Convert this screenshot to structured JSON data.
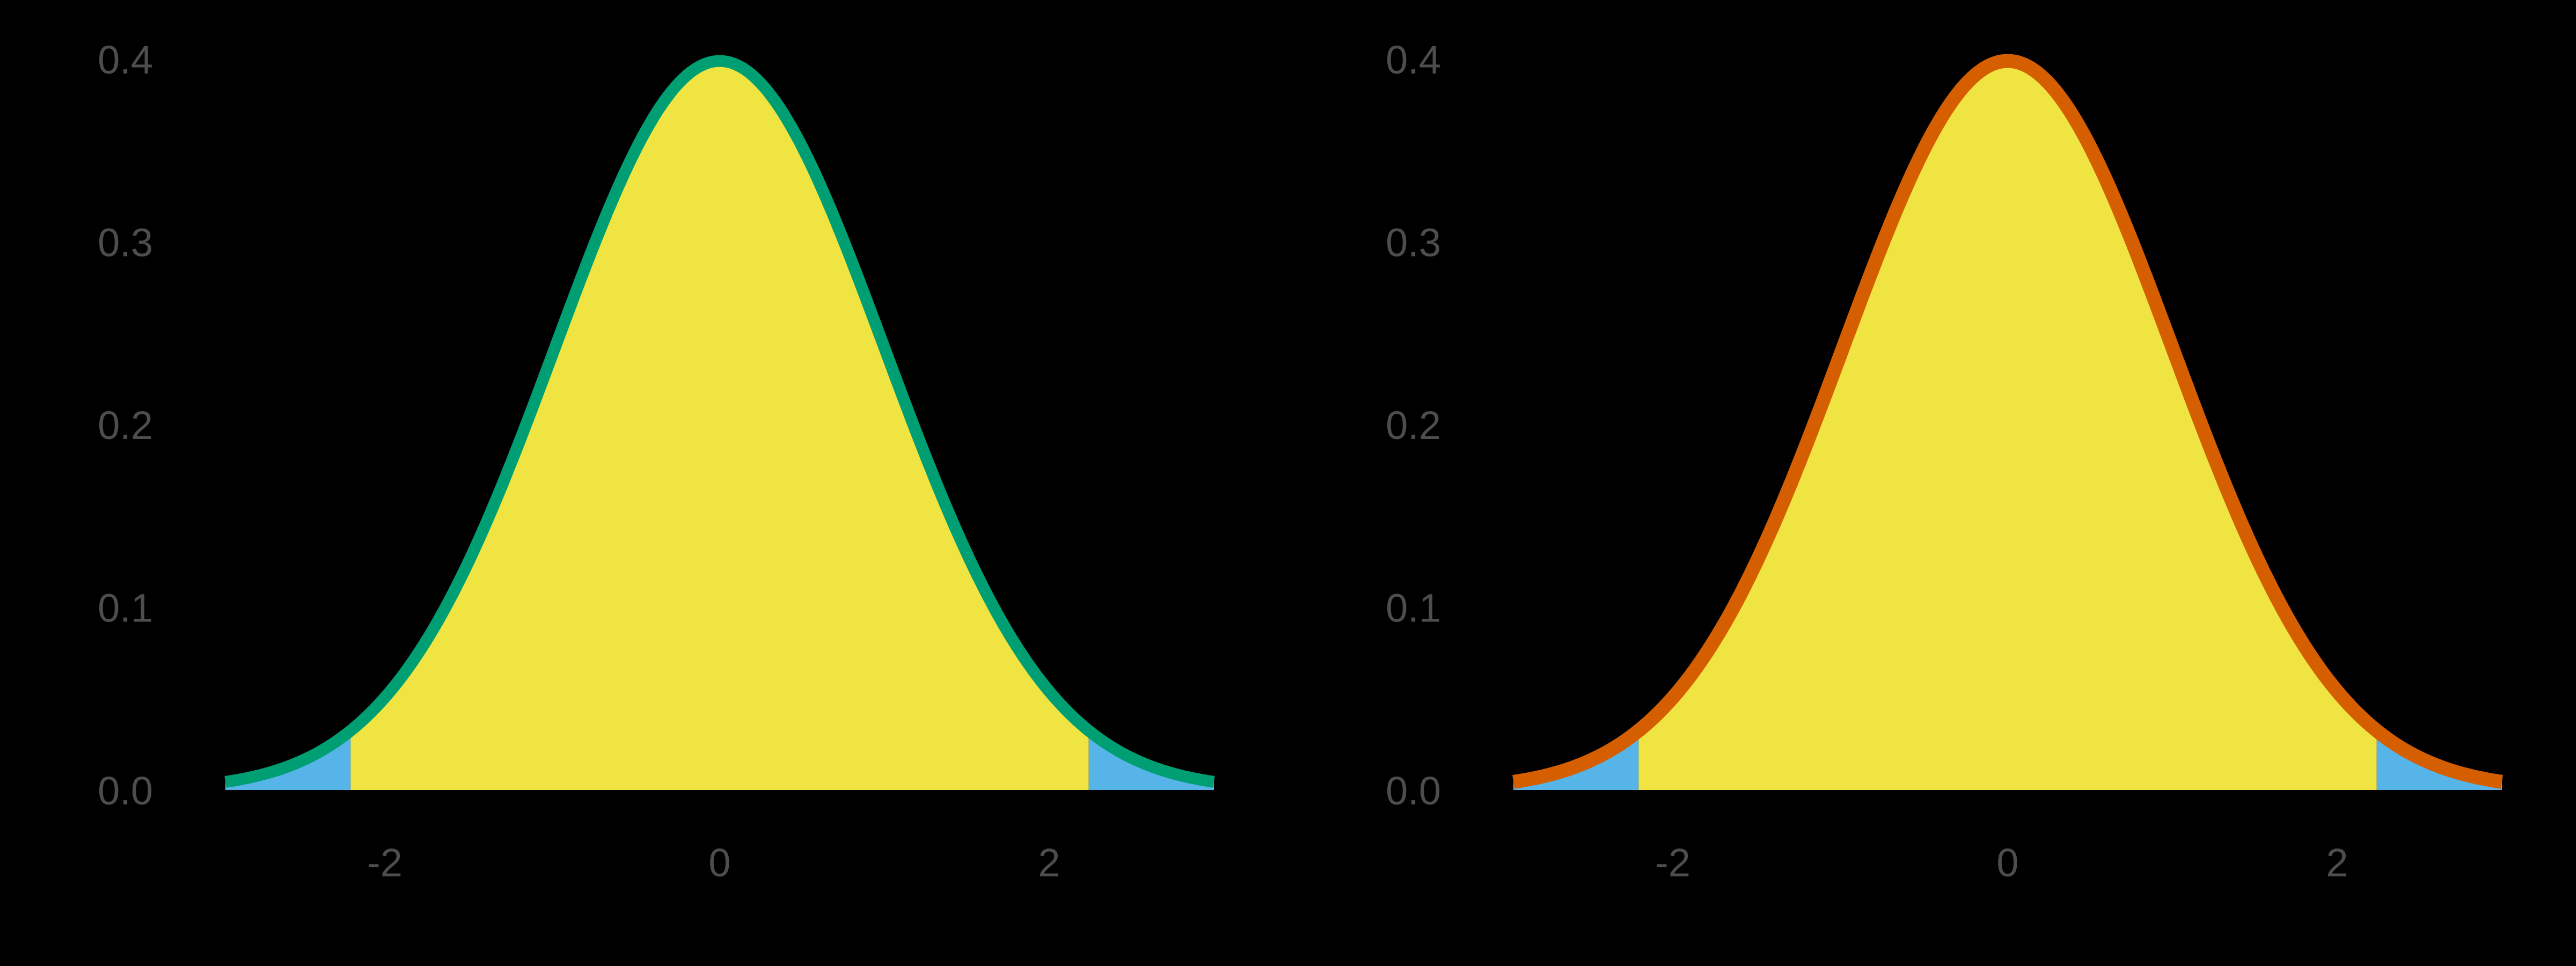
{
  "figure": {
    "background": "#000000",
    "text_color": "#4d4d4d",
    "fill_center_color": "#F0E442",
    "fill_tail_color": "#56B4E9"
  },
  "chart_data": [
    {
      "type": "area",
      "title": "",
      "xlabel": "",
      "ylabel": "",
      "description": "Standard normal density N(0,1) with shaded two-sided rejection tails",
      "curve": {
        "distribution": "normal",
        "mean": 0,
        "sd": 1
      },
      "xlim": [
        -3,
        3
      ],
      "ylim": [
        0,
        0.4
      ],
      "x_ticks": [
        -2,
        0,
        2
      ],
      "x_tick_labels": [
        "-2",
        "0",
        "2"
      ],
      "y_ticks": [
        0.0,
        0.1,
        0.2,
        0.3,
        0.4
      ],
      "y_tick_labels": [
        "0.0",
        "0.1",
        "0.2",
        "0.3",
        "0.4"
      ],
      "critical_values": [
        -2.24,
        2.24
      ],
      "regions": [
        {
          "name": "left tail",
          "from": -3,
          "to": -2.24,
          "color": "#56B4E9"
        },
        {
          "name": "center",
          "from": -2.24,
          "to": 2.24,
          "color": "#F0E442"
        },
        {
          "name": "right tail",
          "from": 2.24,
          "to": 3,
          "color": "#56B4E9"
        }
      ],
      "line_color": "#009E73",
      "line_width": 22,
      "grid": false,
      "legend": null,
      "points": {
        "x": [
          -3,
          -2.5,
          -2,
          -1.5,
          -1,
          -0.5,
          0,
          0.5,
          1,
          1.5,
          2,
          2.5,
          3
        ],
        "y": [
          0.0044,
          0.0175,
          0.054,
          0.1295,
          0.242,
          0.3521,
          0.3989,
          0.3521,
          0.242,
          0.1295,
          0.054,
          0.0175,
          0.0044
        ]
      }
    },
    {
      "type": "area",
      "title": "",
      "xlabel": "",
      "ylabel": "",
      "description": "Standard normal density N(0,1) with shaded two-sided rejection tails",
      "curve": {
        "distribution": "normal",
        "mean": 0,
        "sd": 1
      },
      "xlim": [
        -3,
        3
      ],
      "ylim": [
        0,
        0.4
      ],
      "x_ticks": [
        -2,
        0,
        2
      ],
      "x_tick_labels": [
        "-2",
        "0",
        "2"
      ],
      "y_ticks": [
        0.0,
        0.1,
        0.2,
        0.3,
        0.4
      ],
      "y_tick_labels": [
        "0.0",
        "0.1",
        "0.2",
        "0.3",
        "0.4"
      ],
      "critical_values": [
        -2.24,
        2.24
      ],
      "regions": [
        {
          "name": "left tail",
          "from": -3,
          "to": -2.24,
          "color": "#56B4E9"
        },
        {
          "name": "center",
          "from": -2.24,
          "to": 2.24,
          "color": "#F0E442"
        },
        {
          "name": "right tail",
          "from": 2.24,
          "to": 3,
          "color": "#56B4E9"
        }
      ],
      "line_color": "#D55E00",
      "line_width": 26,
      "grid": false,
      "legend": null,
      "points": {
        "x": [
          -3,
          -2.5,
          -2,
          -1.5,
          -1,
          -0.5,
          0,
          0.5,
          1,
          1.5,
          2,
          2.5,
          3
        ],
        "y": [
          0.0044,
          0.0175,
          0.054,
          0.1295,
          0.242,
          0.3521,
          0.3989,
          0.3521,
          0.242,
          0.1295,
          0.054,
          0.0175,
          0.0044
        ]
      }
    }
  ]
}
